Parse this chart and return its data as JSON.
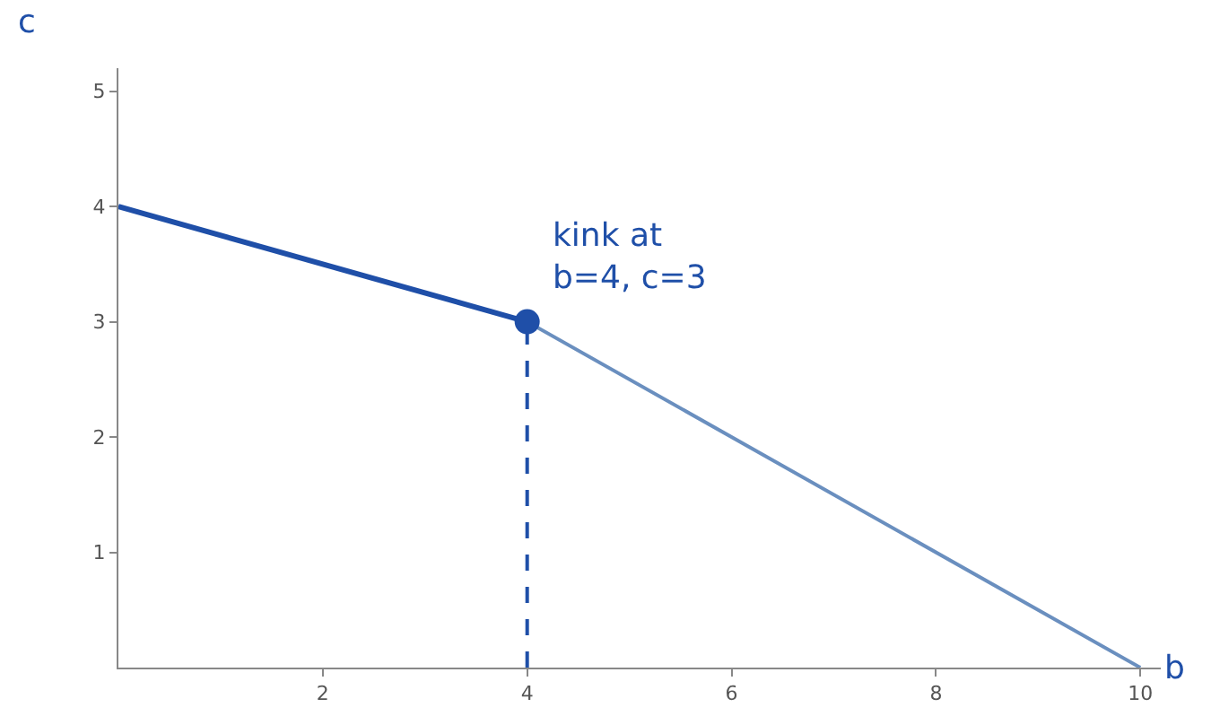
{
  "chart_data": {
    "type": "line",
    "xlabel": "b",
    "ylabel": "c",
    "xlim": [
      0,
      10.2
    ],
    "ylim": [
      0,
      5.2
    ],
    "xticks": [
      2,
      4,
      6,
      8,
      10
    ],
    "yticks": [
      1,
      2,
      3,
      4,
      5
    ],
    "legend": false,
    "series": [
      {
        "x": [
          0,
          4,
          10
        ],
        "values": [
          4,
          3,
          0
        ],
        "color": "#6a8fbf",
        "line_style": "solid",
        "marker": "none"
      },
      {
        "x": [
          0,
          4
        ],
        "values": [
          4,
          3
        ],
        "color": "#1f4fa8",
        "line_style": "solid",
        "marker": "none"
      },
      {
        "x": [
          4,
          4
        ],
        "values": [
          0,
          3
        ],
        "color": "#1f4fa8",
        "line_style": "dashed",
        "marker": "none"
      },
      {
        "type": "scatter",
        "x": [
          4
        ],
        "values": [
          3
        ],
        "color": "#1f4fa8",
        "marker": "circle"
      }
    ],
    "annotations": [
      {
        "text": "kink at\nb=4, c=3",
        "x": 4,
        "y": 3
      }
    ]
  }
}
